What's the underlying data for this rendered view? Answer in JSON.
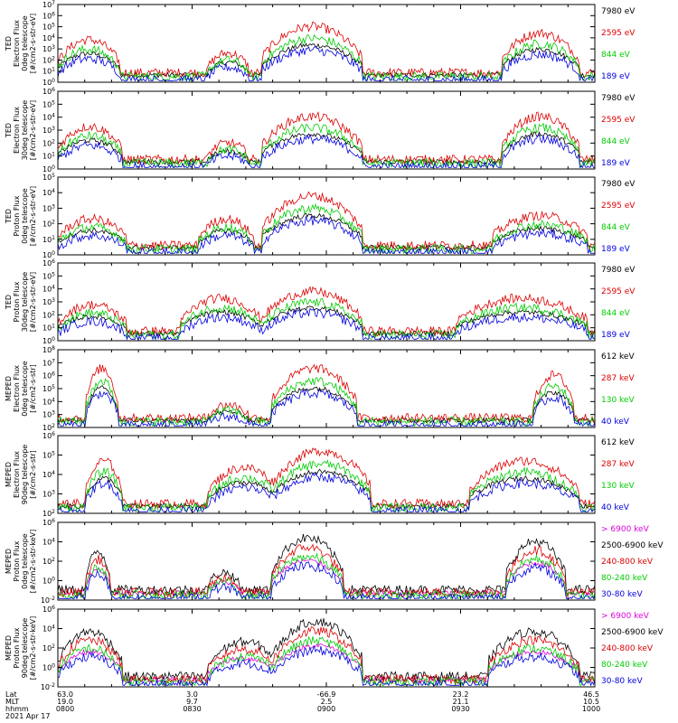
{
  "chart_data": [
    {
      "type": "line",
      "ylabel_lines": [
        "TED",
        "Electron Flux",
        "0deg telescope",
        "[#/cm2-s-str-eV]"
      ],
      "ytick_labels": [
        "10^0",
        "10^1",
        "10^2",
        "10^3",
        "10^4",
        "10^5",
        "10^6",
        "10^7"
      ],
      "ylim_exp": [
        0,
        7
      ],
      "legend": [
        {
          "name": "7980 eV",
          "color": "#000000"
        },
        {
          "name": "2595 eV",
          "color": "#dd0000"
        },
        {
          "name": "844 eV",
          "color": "#00cc00"
        },
        {
          "name": "189 eV",
          "color": "#0000dd"
        }
      ]
    },
    {
      "type": "line",
      "ylabel_lines": [
        "TED",
        "Electron Flux",
        "30deg telescope",
        "[#/cm2-s-str-eV]"
      ],
      "ytick_labels": [
        "10^0",
        "10^1",
        "10^2",
        "10^3",
        "10^4",
        "10^5",
        "10^6"
      ],
      "ylim_exp": [
        0,
        6
      ],
      "legend": [
        {
          "name": "7980 eV",
          "color": "#000000"
        },
        {
          "name": "2595 eV",
          "color": "#dd0000"
        },
        {
          "name": "844 eV",
          "color": "#00cc00"
        },
        {
          "name": "189 eV",
          "color": "#0000dd"
        }
      ]
    },
    {
      "type": "line",
      "ylabel_lines": [
        "TED",
        "Proton Flux",
        "0deg telescope",
        "[#/cm2-s-str-eV]"
      ],
      "ytick_labels": [
        "10^0",
        "10^1",
        "10^2",
        "10^3",
        "10^4",
        "10^5"
      ],
      "ylim_exp": [
        0,
        5
      ],
      "legend": [
        {
          "name": "7980 eV",
          "color": "#000000"
        },
        {
          "name": "2595 eV",
          "color": "#dd0000"
        },
        {
          "name": "844 eV",
          "color": "#00cc00"
        },
        {
          "name": "189 eV",
          "color": "#0000dd"
        }
      ]
    },
    {
      "type": "line",
      "ylabel_lines": [
        "TED",
        "Proton Flux",
        "30deg telescope",
        "[#/cm2-s-str-eV]"
      ],
      "ytick_labels": [
        "10^0",
        "10^1",
        "10^2",
        "10^3",
        "10^4",
        "10^5",
        "10^6"
      ],
      "ylim_exp": [
        0,
        6
      ],
      "legend": [
        {
          "name": "7980 eV",
          "color": "#000000"
        },
        {
          "name": "2595 eV",
          "color": "#dd0000"
        },
        {
          "name": "844 eV",
          "color": "#00cc00"
        },
        {
          "name": "189 eV",
          "color": "#0000dd"
        }
      ]
    },
    {
      "type": "line",
      "ylabel_lines": [
        "MEPED",
        "Electron Flux",
        "0deg telescope",
        "[#/cm2-s-str]"
      ],
      "ytick_labels": [
        "10^2",
        "10^3",
        "10^4",
        "10^5",
        "10^6",
        "10^7",
        "10^8"
      ],
      "ylim_exp": [
        2,
        8
      ],
      "legend": [
        {
          "name": "612 keV",
          "color": "#000000"
        },
        {
          "name": "287 keV",
          "color": "#dd0000"
        },
        {
          "name": "130 keV",
          "color": "#00cc00"
        },
        {
          "name": "40 keV",
          "color": "#0000dd"
        }
      ]
    },
    {
      "type": "line",
      "ylabel_lines": [
        "MEPED",
        "Electron Flux",
        "90deg telescope",
        "[#/cm2-s-str]"
      ],
      "ytick_labels": [
        "10^2",
        "10^3",
        "10^4",
        "10^5",
        "10^6"
      ],
      "ylim_exp": [
        2,
        6
      ],
      "legend": [
        {
          "name": "612 keV",
          "color": "#000000"
        },
        {
          "name": "287 keV",
          "color": "#dd0000"
        },
        {
          "name": "130 keV",
          "color": "#00cc00"
        },
        {
          "name": "40 keV",
          "color": "#0000dd"
        }
      ]
    },
    {
      "type": "line",
      "ylabel_lines": [
        "MEPED",
        "Proton Flux",
        "0deg telescope",
        "[#/cm2-s-str-keV]"
      ],
      "ytick_labels": [
        "10^-2",
        "10^0",
        "10^2",
        "10^4",
        "10^6"
      ],
      "ylim_exp": [
        -2,
        6
      ],
      "legend": [
        {
          "name": "> 6900 keV",
          "color": "#dd00dd"
        },
        {
          "name": "2500-6900 keV",
          "color": "#000000"
        },
        {
          "name": "240-800 keV",
          "color": "#dd0000"
        },
        {
          "name": "80-240 keV",
          "color": "#00cc00"
        },
        {
          "name": "30-80 keV",
          "color": "#0000dd"
        }
      ]
    },
    {
      "type": "line",
      "ylabel_lines": [
        "MEPED",
        "Proton Flux",
        "90deg telescope",
        "[#/cm2-s-str-keV]"
      ],
      "ytick_labels": [
        "10^-2",
        "10^0",
        "10^2",
        "10^4",
        "10^6"
      ],
      "ylim_exp": [
        -2,
        6
      ],
      "legend": [
        {
          "name": "> 6900 keV",
          "color": "#dd00dd"
        },
        {
          "name": "2500-6900 keV",
          "color": "#000000"
        },
        {
          "name": "240-800 keV",
          "color": "#dd0000"
        },
        {
          "name": "80-240 keV",
          "color": "#00cc00"
        },
        {
          "name": "30-80 keV",
          "color": "#0000dd"
        }
      ]
    }
  ],
  "x_axis": {
    "row_labels": [
      "Lat",
      "MLT",
      "hhmm",
      "2021 Apr 17"
    ],
    "ticks": [
      {
        "lat": "63.0",
        "mlt": "19.0",
        "hhmm": "0800"
      },
      {
        "lat": "3.0",
        "mlt": "9.7",
        "hhmm": "0830"
      },
      {
        "lat": "-66.9",
        "mlt": "2.5",
        "hhmm": "0900"
      },
      {
        "lat": "23.2",
        "mlt": "21.1",
        "hhmm": "0930"
      },
      {
        "lat": "46.5",
        "mlt": "10.5",
        "hhmm": "1000"
      }
    ]
  }
}
